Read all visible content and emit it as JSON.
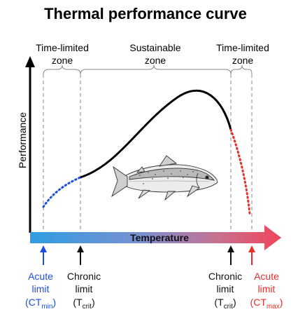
{
  "title": "Thermal performance curve",
  "zones": {
    "left": {
      "line1": "Time-limited",
      "line2": "zone"
    },
    "middle": {
      "line1": "Sustainable",
      "line2": "zone"
    },
    "right": {
      "line1": "Time-limited",
      "line2": "zone"
    }
  },
  "axes": {
    "y_label": "Performance",
    "x_label": "Temperature"
  },
  "limits": {
    "acute_min": {
      "line1": "Acute",
      "line2": "limit",
      "base": "(CT",
      "sub": "min",
      "close": ")",
      "color": "#1f4fe0"
    },
    "chronic_min": {
      "line1": "Chronic",
      "line2": "limit",
      "base": "(T",
      "sub": "crit",
      "close": ")",
      "color": "#111111"
    },
    "chronic_max": {
      "line1": "Chronic",
      "line2": "limit",
      "base": "(T",
      "sub": "crit",
      "close": ")",
      "color": "#111111"
    },
    "acute_max": {
      "line1": "Acute",
      "line2": "limit",
      "base": "(CT",
      "sub": "max",
      "close": ")",
      "color": "#e8302a"
    }
  },
  "colors": {
    "cold": "#2f9de0",
    "hot": "#f0455a",
    "curve": "#000000",
    "cold_dotted": "#1f4fe0",
    "hot_dotted": "#e8302a"
  },
  "icons": {
    "fish": "salmon-illustration"
  }
}
